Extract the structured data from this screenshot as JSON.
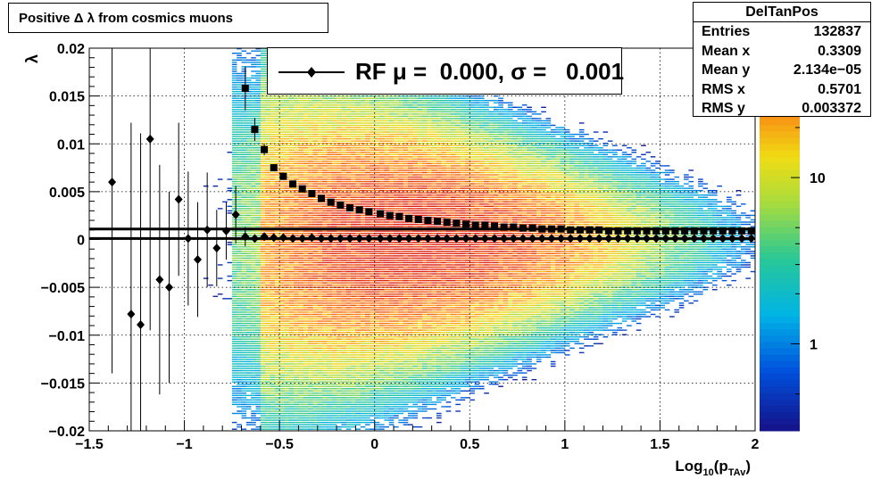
{
  "title": "Positive Δ λ from cosmics muons",
  "stats": {
    "name": "DelTanPos",
    "rows": [
      {
        "label": "Entries",
        "value": "132837"
      },
      {
        "label": "Mean x",
        "value": "0.3309"
      },
      {
        "label": "Mean y",
        "value": "2.134e−05"
      },
      {
        "label": "RMS x",
        "value": "0.5701"
      },
      {
        "label": "RMS y",
        "value": "0.003372"
      }
    ]
  },
  "legend": {
    "label": "RF μ =  0.000, σ =   0.001"
  },
  "chart_data": {
    "type": "heatmap",
    "xlabel": "Log10(pTAv)",
    "ylabel": "λ",
    "xlim": [
      -1.5,
      2
    ],
    "ylim": [
      -0.02,
      0.02
    ],
    "x_ticks": [
      "−1.5",
      "−1",
      "−0.5",
      "0",
      "0.5",
      "1",
      "1.5",
      "2"
    ],
    "x_tick_values": [
      -1.5,
      -1,
      -0.5,
      0,
      0.5,
      1,
      1.5,
      2
    ],
    "y_ticks": [
      "−0.02",
      "−0.015",
      "−0.01",
      "−0.005",
      "0",
      "0.005",
      "0.01",
      "0.015",
      "0.02"
    ],
    "y_tick_values": [
      -0.02,
      -0.015,
      -0.01,
      -0.005,
      0,
      0.005,
      0.01,
      0.015,
      0.02
    ],
    "grid": true,
    "colorbar": {
      "scale": "log",
      "ticks": [
        "1",
        "10"
      ],
      "tick_values": [
        1,
        10
      ],
      "range": [
        0.3,
        60
      ]
    },
    "series": [
      {
        "name": "RF μ",
        "marker": "diamond",
        "x": [
          -1.38,
          -1.28,
          -1.23,
          -1.18,
          -1.13,
          -1.08,
          -1.03,
          -0.98,
          -0.93,
          -0.88,
          -0.83,
          -0.78,
          -0.73,
          -0.68,
          -0.63,
          -0.58,
          -0.53,
          -0.48,
          -0.43,
          -0.38,
          -0.33,
          -0.28,
          -0.23,
          -0.18,
          -0.13,
          -0.08,
          -0.03,
          0.03,
          0.08,
          0.13,
          0.18,
          0.23,
          0.28,
          0.33,
          0.38,
          0.43,
          0.48,
          0.53,
          0.58,
          0.63,
          0.68,
          0.73,
          0.78,
          0.83,
          0.88,
          0.93,
          0.98,
          1.03,
          1.08,
          1.13,
          1.18,
          1.23,
          1.28,
          1.33,
          1.38,
          1.43,
          1.48,
          1.53,
          1.58,
          1.63,
          1.68,
          1.73,
          1.78,
          1.83,
          1.88,
          1.93,
          1.98
        ],
        "y": [
          0.006,
          -0.0078,
          -0.0089,
          0.0105,
          -0.0042,
          -0.005,
          0.0042,
          0.0001,
          -0.0021,
          0.001,
          -0.0009,
          0.0009,
          0.0026,
          0.0003,
          0.0001,
          0.0003,
          0.0002,
          0.0002,
          0.0001,
          0.0001,
          0.0002,
          0.0001,
          0.0001,
          0.0001,
          0.0001,
          0.0001,
          0.0001,
          0.0001,
          0.0001,
          0.0001,
          0.0001,
          0.0001,
          0.0001,
          0.0001,
          0.0001,
          0.0001,
          0.0001,
          0.0001,
          0.0001,
          0.0001,
          0.0001,
          0.0001,
          0.0001,
          0.0001,
          0.0001,
          0.0001,
          0.0001,
          0.0001,
          0.0001,
          0.0001,
          0.0001,
          0.0001,
          0.0001,
          0.0001,
          0.0001,
          0.0001,
          0.0001,
          0.0001,
          0.0001,
          0.0001,
          0.0001,
          0.0001,
          0.0001,
          0.0001,
          0.0001,
          0.0001,
          0.0001
        ],
        "err": [
          0.02,
          0.02,
          0.02,
          0.02,
          0.012,
          0.01,
          0.008,
          0.007,
          0.006,
          0.006,
          0.004,
          0.003,
          0.003,
          0.001,
          0.0004,
          0.0003,
          0.0002,
          0.0002,
          0.0001,
          0.0001,
          0.0001,
          0.0001,
          0.0001,
          0.0001,
          0.0001,
          0.0001,
          0.0001,
          0.0001,
          0.0001,
          0.0001,
          0.0001,
          0.0001,
          0.0001,
          0.0001,
          0.0001,
          0.0001,
          0.0001,
          0.0001,
          0.0001,
          0.0001,
          0.0001,
          0.0001,
          0.0001,
          0.0001,
          0.0001,
          0.0001,
          0.0001,
          0.0001,
          0.0001,
          0.0001,
          0.0001,
          0.0001,
          0.0001,
          0.0001,
          0.0001,
          0.0001,
          0.0001,
          0.0001,
          0.0001,
          0.0001,
          0.0001,
          0.0001,
          0.0001,
          0.0001,
          0.0001,
          0.0001,
          0.0001
        ]
      },
      {
        "name": "RF σ",
        "marker": "square",
        "x": [
          -0.68,
          -0.63,
          -0.58,
          -0.53,
          -0.48,
          -0.43,
          -0.38,
          -0.33,
          -0.28,
          -0.23,
          -0.18,
          -0.13,
          -0.08,
          -0.03,
          0.03,
          0.08,
          0.13,
          0.18,
          0.23,
          0.28,
          0.33,
          0.38,
          0.43,
          0.48,
          0.53,
          0.58,
          0.63,
          0.68,
          0.73,
          0.78,
          0.83,
          0.88,
          0.93,
          0.98,
          1.03,
          1.08,
          1.13,
          1.18,
          1.23,
          1.28,
          1.33,
          1.38,
          1.43,
          1.48,
          1.53,
          1.58,
          1.63,
          1.68,
          1.73,
          1.78,
          1.83,
          1.88,
          1.93,
          1.98
        ],
        "y": [
          0.0158,
          0.0115,
          0.0094,
          0.0075,
          0.0066,
          0.0058,
          0.0053,
          0.0048,
          0.0043,
          0.0039,
          0.0036,
          0.0033,
          0.0031,
          0.0029,
          0.0027,
          0.0025,
          0.0024,
          0.0022,
          0.0021,
          0.002,
          0.0019,
          0.0018,
          0.0017,
          0.0016,
          0.0015,
          0.0015,
          0.0014,
          0.0013,
          0.0013,
          0.0012,
          0.0012,
          0.0011,
          0.0011,
          0.0011,
          0.001,
          0.001,
          0.001,
          0.001,
          0.0009,
          0.0009,
          0.0009,
          0.0009,
          0.0009,
          0.0009,
          0.0009,
          0.0009,
          0.0009,
          0.0009,
          0.0009,
          0.0009,
          0.0009,
          0.0009,
          0.0009,
          0.0009
        ],
        "err": [
          0.0023,
          0.0012,
          0.0006,
          0.0003,
          0.0002,
          0.0002,
          0.0001,
          0.0001,
          0.0001,
          0.0001,
          0.0001,
          0.0001,
          0.0001,
          0.0001,
          0.0001,
          0.0001,
          0.0001,
          0.0001,
          0.0001,
          0.0001,
          0.0001,
          0.0001,
          0.0001,
          0.0001,
          0.0001,
          0.0001,
          0.0001,
          0.0001,
          0.0001,
          0.0001,
          0.0001,
          0.0001,
          0.0001,
          0.0001,
          0.0001,
          0.0001,
          0.0001,
          0.0001,
          0.0001,
          0.0001,
          0.0001,
          0.0001,
          0.0001,
          0.0001,
          0.0001,
          0.0001,
          0.0001,
          0.0001,
          0.0001,
          0.0001,
          0.0001,
          0.0001,
          0.0001,
          0.0001
        ]
      }
    ],
    "fit_lines": [
      {
        "y_start": 0.0011,
        "y_end": 0.0011
      },
      {
        "y_start": 0.0001,
        "y_end": 0.0001
      }
    ]
  }
}
